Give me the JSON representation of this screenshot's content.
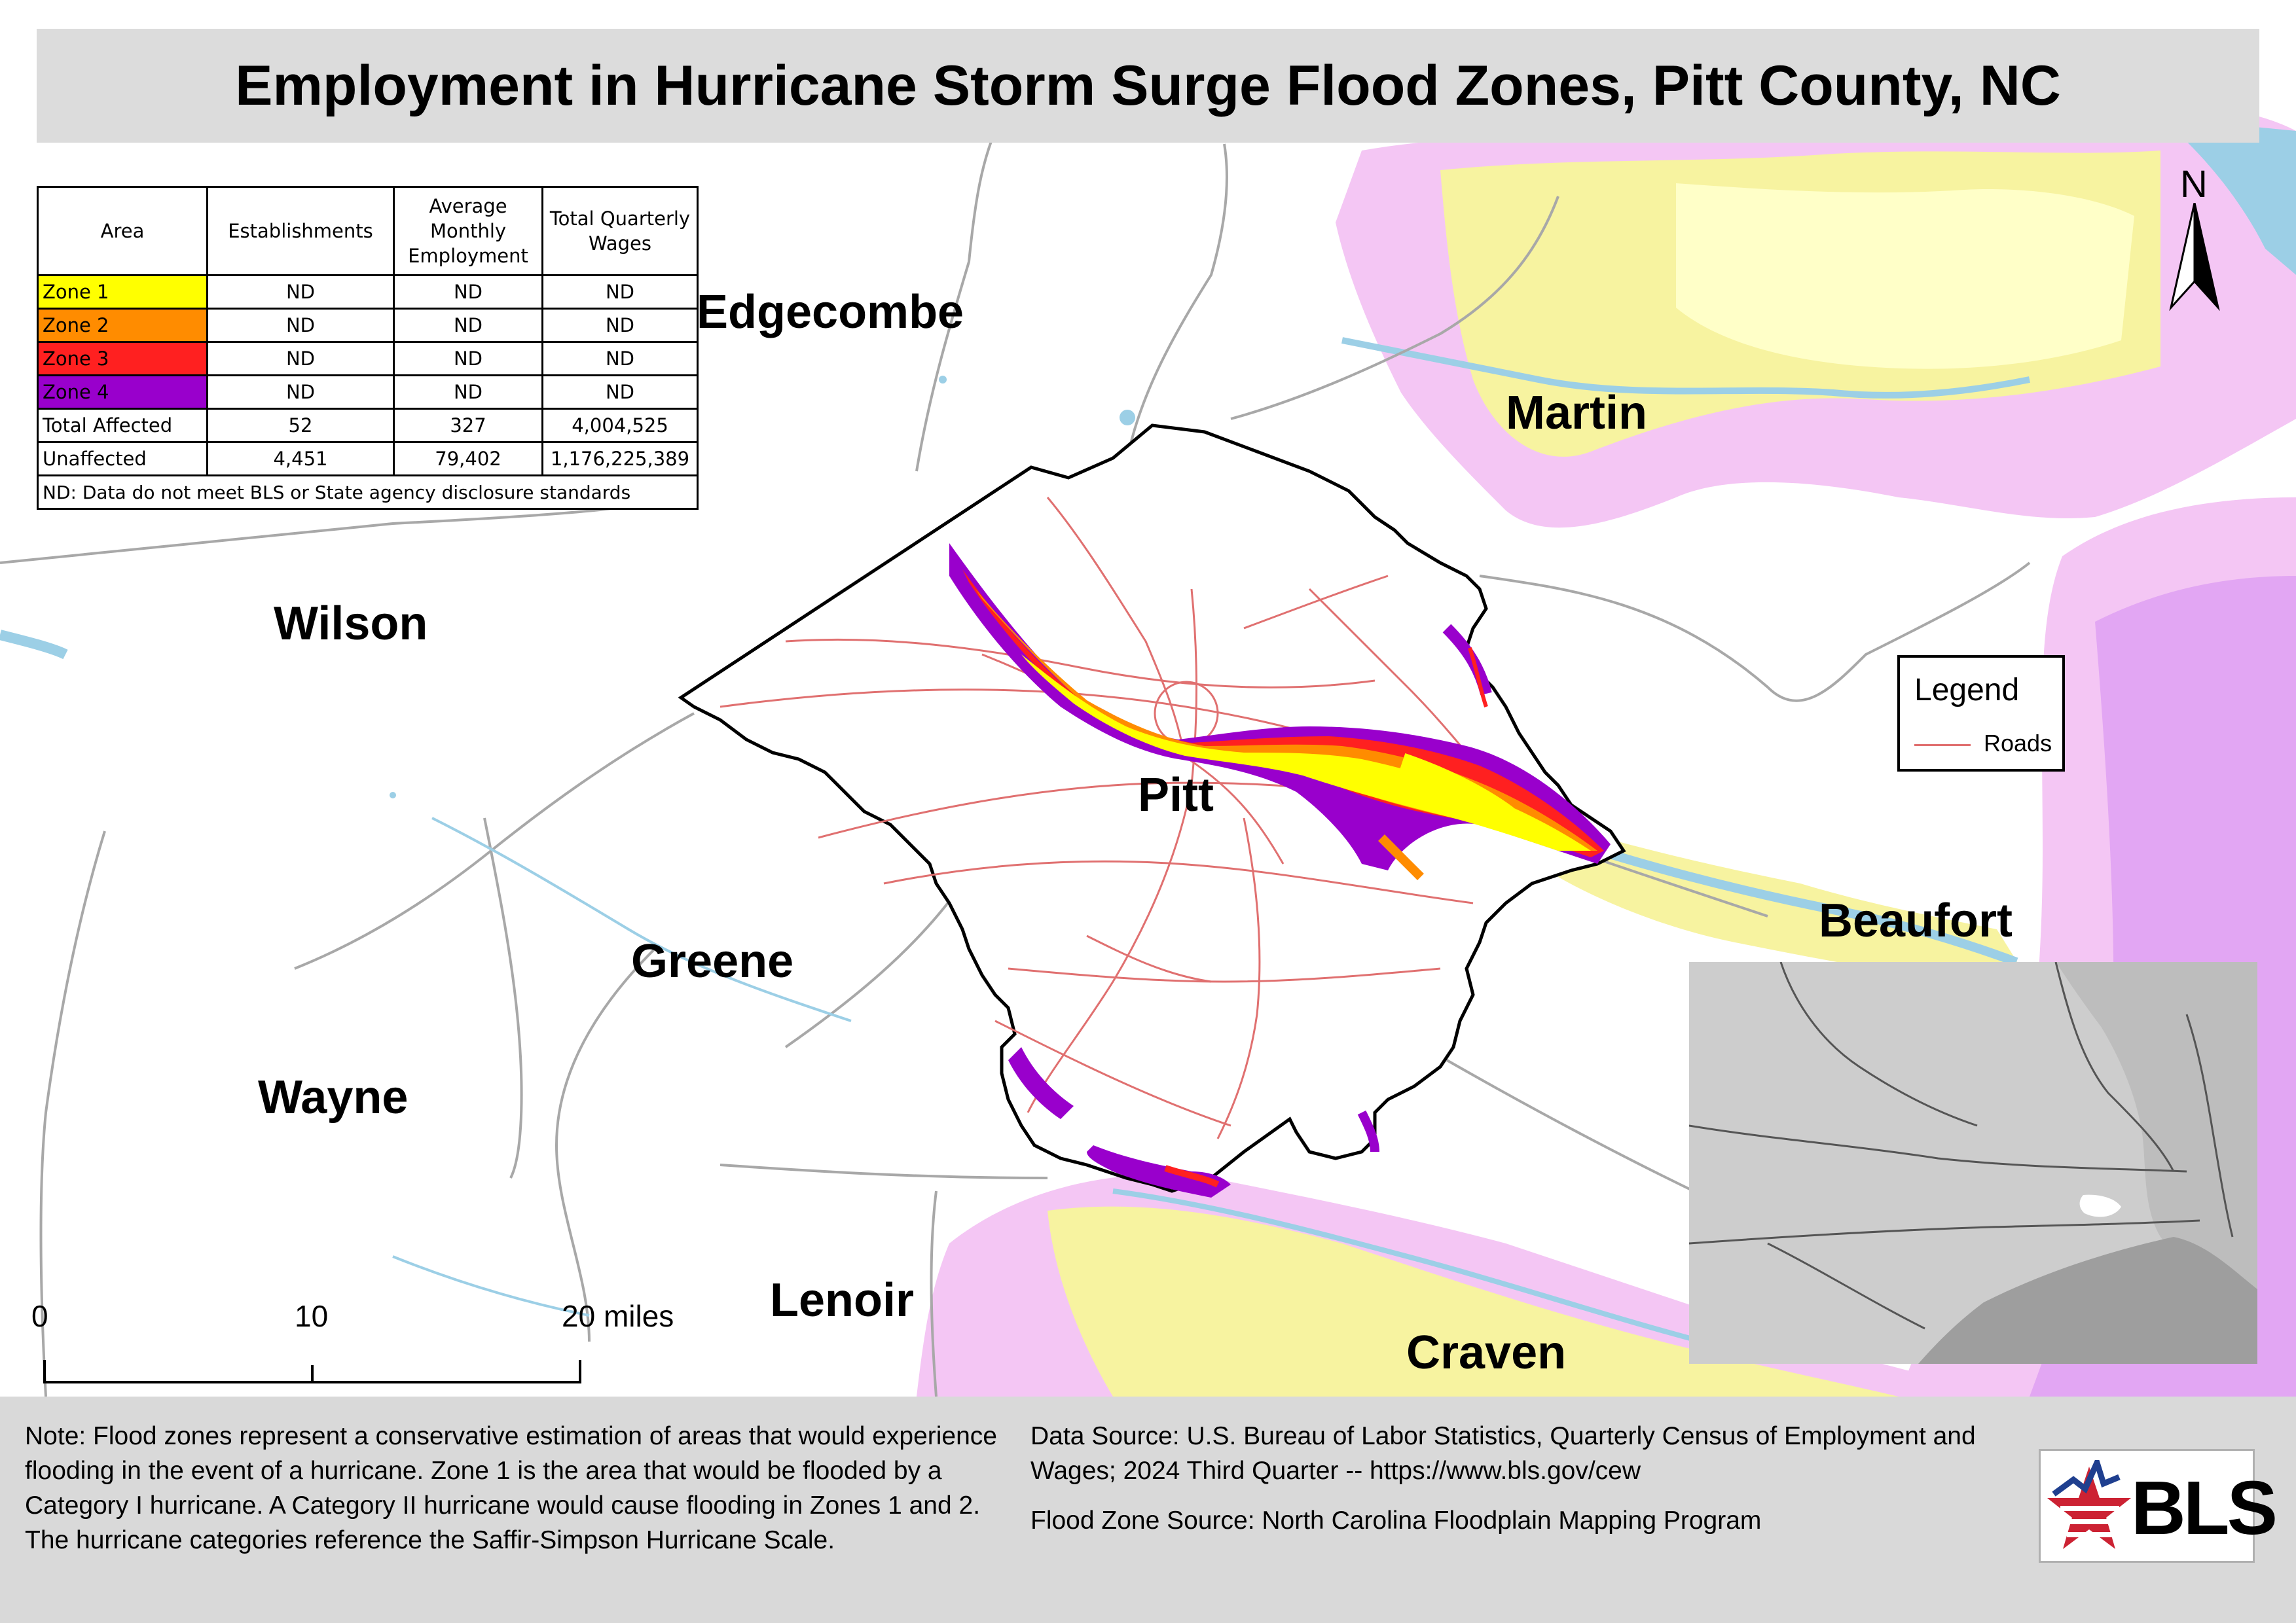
{
  "title": "Employment in Hurricane Storm Surge Flood Zones, Pitt County, NC",
  "table": {
    "headers": [
      "Area",
      "Establishments",
      "Average Monthly Employment",
      "Total Quarterly Wages"
    ],
    "rows": [
      {
        "area": "Zone 1",
        "color": "#ffff00",
        "establishments": "ND",
        "employment": "ND",
        "wages": "ND"
      },
      {
        "area": "Zone 2",
        "color": "#ff8c00",
        "establishments": "ND",
        "employment": "ND",
        "wages": "ND"
      },
      {
        "area": "Zone 3",
        "color": "#ff2020",
        "establishments": "ND",
        "employment": "ND",
        "wages": "ND"
      },
      {
        "area": "Zone 4",
        "color": "#9900cc",
        "establishments": "ND",
        "employment": "ND",
        "wages": "ND"
      },
      {
        "area": "Total Affected",
        "color": "#ffffff",
        "establishments": "52",
        "employment": "327",
        "wages": "4,004,525"
      },
      {
        "area": "Unaffected",
        "color": "#ffffff",
        "establishments": "4,451",
        "employment": "79,402",
        "wages": "1,176,225,389"
      }
    ],
    "note": "ND: Data do not meet BLS or State agency disclosure standards"
  },
  "counties": {
    "edgecombe": "Edgecombe",
    "martin": "Martin",
    "wilson": "Wilson",
    "pitt": "Pitt",
    "greene": "Greene",
    "wayne": "Wayne",
    "beaufort": "Beaufort",
    "lenoir": "Lenoir",
    "craven": "Craven"
  },
  "legend": {
    "title": "Legend",
    "roads_label": "Roads",
    "roads_color": "#e07070"
  },
  "north_arrow": "N",
  "scale": {
    "label_0": "0",
    "label_10": "10",
    "label_20": "20 miles"
  },
  "footer": {
    "note": "Note: Flood zones represent a conservative estimation of areas that would experience flooding in the event of a hurricane. Zone 1 is the area that would be flooded by a Category I hurricane. A Category II hurricane would cause flooding in Zones 1 and 2. The hurricane categories reference the Saffir-Simpson Hurricane Scale.",
    "data_source": "Data Source: U.S. Bureau of Labor Statistics, Quarterly Census of Employment and Wages; 2024 Third Quarter -- https://www.bls.gov/cew",
    "flood_source": "Flood Zone Source: North Carolina Floodplain Mapping Program"
  },
  "logo": {
    "text": "BLS",
    "accent": "#cc2233",
    "accent2": "#1f3f8f"
  },
  "colors": {
    "zone1": "#ffff00",
    "zone2": "#ff8c00",
    "zone3": "#ff2020",
    "zone4": "#9900cc",
    "floodplain_light": "#f7f3a0",
    "floodplain_pink": "#f4c6f4",
    "floodplain_violet": "#e2a6f3",
    "water": "#9ccfe6"
  }
}
